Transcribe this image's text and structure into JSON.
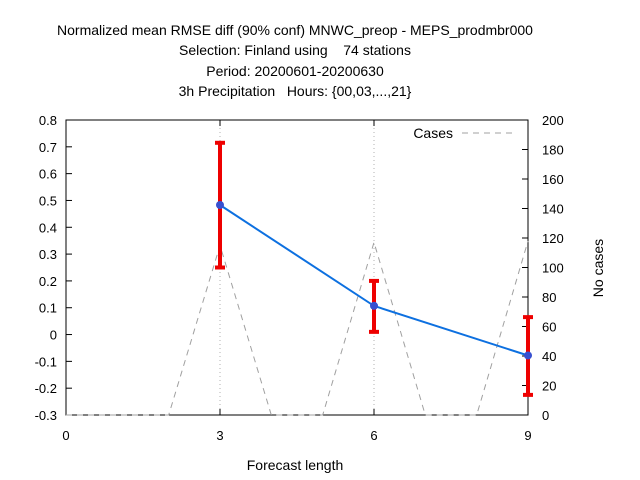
{
  "chart_data": {
    "type": "line",
    "title_lines": [
      "Normalized mean RMSE diff (90% conf) MNWC_preop - MEPS_prodmbr000",
      "Selection: Finland using    74 stations",
      "Period: 20200601-20200630",
      "3h Precipitation   Hours: {00,03,...,21}"
    ],
    "xlabel": "Forecast length",
    "ylabel": "",
    "y2label": "No cases",
    "xlim": [
      0,
      9
    ],
    "ylim": [
      -0.3,
      0.8
    ],
    "y2lim": [
      0,
      200
    ],
    "x_ticks": [
      0,
      3,
      6,
      9
    ],
    "y_ticks": [
      "-0.3",
      "-0.2",
      "-0.1",
      "0",
      "0.1",
      "0.2",
      "0.3",
      "0.4",
      "0.5",
      "0.6",
      "0.7",
      "0.8"
    ],
    "y2_ticks": [
      "0",
      "20",
      "40",
      "60",
      "80",
      "100",
      "120",
      "140",
      "160",
      "180",
      "200"
    ],
    "grid": "vertical at x ticks",
    "series": [
      {
        "x": [
          3,
          6,
          9
        ],
        "values": [
          0.483,
          0.107,
          -0.078
        ],
        "ci_low": [
          0.25,
          0.01,
          -0.225
        ],
        "ci_high": [
          0.715,
          0.2,
          0.065
        ],
        "color": "#0d70e0",
        "errorbar_color": "#ee0000"
      },
      {
        "name": "Cases",
        "axis": "y2",
        "style": "dashed",
        "color": "#a0a0a0",
        "x": [
          0,
          2,
          3,
          4,
          5,
          6,
          7,
          8,
          9
        ],
        "values": [
          0,
          0,
          115,
          0,
          0,
          117,
          0,
          0,
          118
        ]
      }
    ],
    "legend": {
      "entries": [
        "Cases"
      ],
      "placement": "top-right"
    }
  }
}
